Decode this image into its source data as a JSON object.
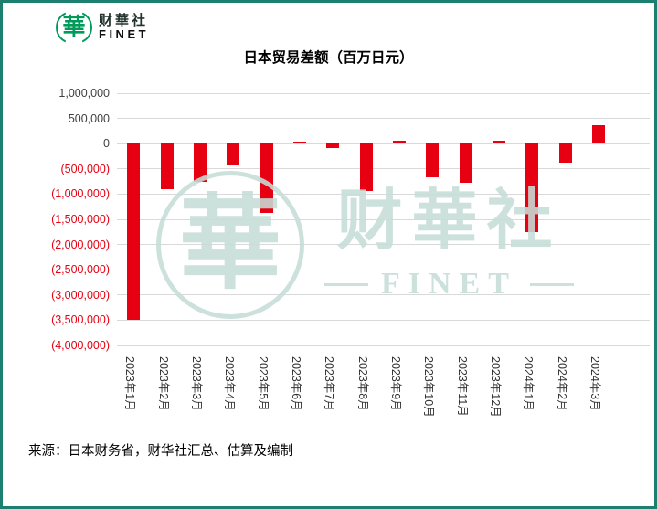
{
  "page": {
    "border_color": "#1d7f6f",
    "background": "#ffffff"
  },
  "logo": {
    "symbol": "華",
    "company_cn": "财華社",
    "company_en": "FINET",
    "brand_green": "#009a5b"
  },
  "chart_data": {
    "type": "bar",
    "title": "日本贸易差额（百万日元）",
    "categories": [
      "2023年1月",
      "2023年2月",
      "2023年3月",
      "2023年4月",
      "2023年5月",
      "2023年6月",
      "2023年7月",
      "2023年8月",
      "2023年9月",
      "2023年10月",
      "2023年11月",
      "2023年12月",
      "2024年1月",
      "2024年2月",
      "2024年3月"
    ],
    "values": [
      -3500000,
      -900000,
      -750000,
      -430000,
      -1370000,
      40000,
      -80000,
      -930000,
      60000,
      -660000,
      -780000,
      60000,
      -1760000,
      -380000,
      370000
    ],
    "bar_color": "#e60012",
    "ylim": [
      -4000000,
      1000000
    ],
    "yticks": [
      {
        "value": 1000000,
        "label": "1,000,000"
      },
      {
        "value": 500000,
        "label": "500,000"
      },
      {
        "value": 0,
        "label": "0"
      },
      {
        "value": -500000,
        "label": "(500,000)"
      },
      {
        "value": -1000000,
        "label": "(1,000,000)"
      },
      {
        "value": -1500000,
        "label": "(1,500,000)"
      },
      {
        "value": -2000000,
        "label": "(2,000,000)"
      },
      {
        "value": -2500000,
        "label": "(2,500,000)"
      },
      {
        "value": -3000000,
        "label": "(3,000,000)"
      },
      {
        "value": -3500000,
        "label": "(3,500,000)"
      },
      {
        "value": -4000000,
        "label": "(4,000,000)"
      }
    ],
    "ytick_positive_color": "#404040",
    "ytick_negative_color": "#e60012",
    "grid_color": "#d9d9d9",
    "grid": true,
    "legend": "none",
    "xlabel": "",
    "ylabel": ""
  },
  "watermark": {
    "symbol": "華",
    "text_cn": "财華社",
    "text_en": "FINET"
  },
  "footer": {
    "source": "来源：日本财务省，财华社汇总、估算及编制"
  }
}
